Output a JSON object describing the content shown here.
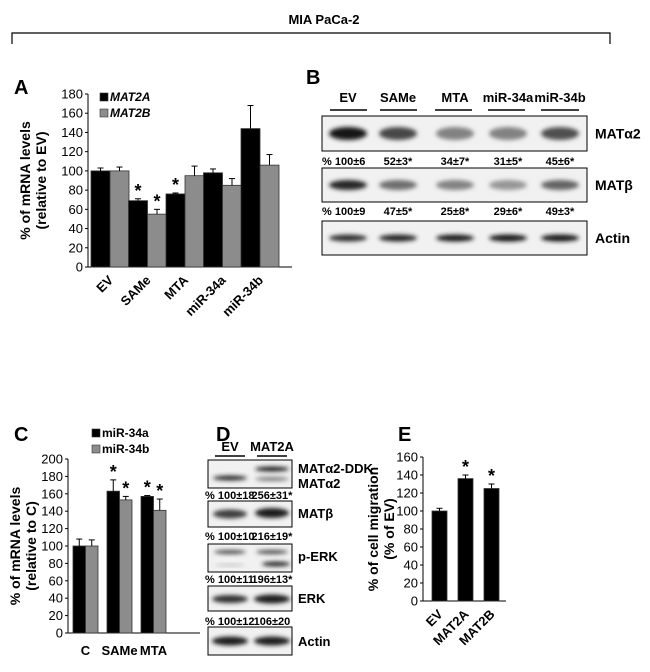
{
  "figure_title": "MIA PaCa-2",
  "chart_data": [
    {
      "panel": "A",
      "type": "bar",
      "ylabel_line1": "% of mRNA levels",
      "ylabel_line2": "(relative to EV)",
      "ylim": [
        0,
        180
      ],
      "yticks": [
        "0",
        "20",
        "40",
        "60",
        "80",
        "100",
        "120",
        "140",
        "160",
        "180"
      ],
      "categories": [
        "EV",
        "SAMe",
        "MTA",
        "miR-34a",
        "miR-34b"
      ],
      "series": [
        {
          "name": "MAT2A",
          "color": "#000000",
          "values": [
            100,
            69,
            76,
            98,
            144
          ],
          "errors": [
            3,
            2,
            1,
            4,
            24
          ],
          "significant": [
            false,
            true,
            true,
            false,
            false
          ]
        },
        {
          "name": "MAT2B",
          "color": "#8c8c8c",
          "values": [
            100,
            55,
            95,
            85,
            106
          ],
          "errors": [
            4,
            5,
            10,
            7,
            11
          ],
          "significant": [
            false,
            true,
            false,
            false,
            false
          ]
        }
      ],
      "legend": "top-left",
      "significance_mark": "*"
    },
    {
      "panel": "C",
      "type": "bar",
      "ylabel_line1": "% of mRNA levels",
      "ylabel_line2": "(relative to C)",
      "ylim": [
        0,
        200
      ],
      "yticks": [
        "0",
        "20",
        "40",
        "60",
        "80",
        "100",
        "120",
        "140",
        "160",
        "180",
        "200"
      ],
      "categories": [
        "C",
        "SAMe",
        "MTA"
      ],
      "series": [
        {
          "name": "miR-34a",
          "color": "#000000",
          "values": [
            100,
            163,
            157
          ],
          "errors": [
            8,
            13,
            1
          ],
          "significant": [
            false,
            true,
            true
          ]
        },
        {
          "name": "miR-34b",
          "color": "#8c8c8c",
          "values": [
            100,
            153,
            141
          ],
          "errors": [
            7,
            4,
            13
          ],
          "significant": [
            false,
            true,
            true
          ]
        }
      ],
      "legend": "top",
      "significance_mark": "*"
    },
    {
      "panel": "E",
      "type": "bar",
      "ylabel_line1": "% of cell migration",
      "ylabel_line2": "(% of EV)",
      "ylim": [
        0,
        160
      ],
      "yticks": [
        "0",
        "20",
        "40",
        "60",
        "80",
        "100",
        "120",
        "140",
        "160"
      ],
      "categories": [
        "EV",
        "MAT2A",
        "MAT2B"
      ],
      "series": [
        {
          "name": "migration",
          "color": "#000000",
          "values": [
            100,
            136,
            125
          ],
          "errors": [
            3,
            4,
            5
          ],
          "significant": [
            false,
            true,
            true
          ]
        }
      ],
      "significance_mark": "*"
    }
  ],
  "blot_B": {
    "panel": "B",
    "lanes": [
      "EV",
      "SAMe",
      "MTA",
      "miR-34a",
      "miR-34b"
    ],
    "rows": [
      {
        "label": "MATα2",
        "intensity": [
          1.0,
          0.75,
          0.45,
          0.45,
          0.7
        ]
      },
      {
        "label": "MATβ",
        "intensity": [
          0.9,
          0.55,
          0.45,
          0.35,
          0.6
        ]
      },
      {
        "label": "Actin",
        "intensity": [
          0.85,
          0.9,
          0.95,
          1.0,
          1.0
        ]
      }
    ],
    "quant": [
      [
        "% 100±6",
        "52±3*",
        "34±7*",
        "31±5*",
        "45±6*"
      ],
      [
        "% 100±9",
        "47±5*",
        "25±8*",
        "29±6*",
        "49±3*"
      ]
    ]
  },
  "blot_D": {
    "panel": "D",
    "lanes": [
      "EV",
      "MAT2A"
    ],
    "labels": [
      "MATα2-DDK",
      "MATα2",
      "MATβ",
      "p-ERK",
      "ERK",
      "Actin"
    ],
    "quant": [
      [
        "% 100±18",
        "256±31*"
      ],
      [
        "% 100±10",
        "216±19*"
      ],
      [
        "% 100±11",
        "196±13*"
      ],
      [
        "% 100±12",
        "106±20"
      ]
    ]
  }
}
